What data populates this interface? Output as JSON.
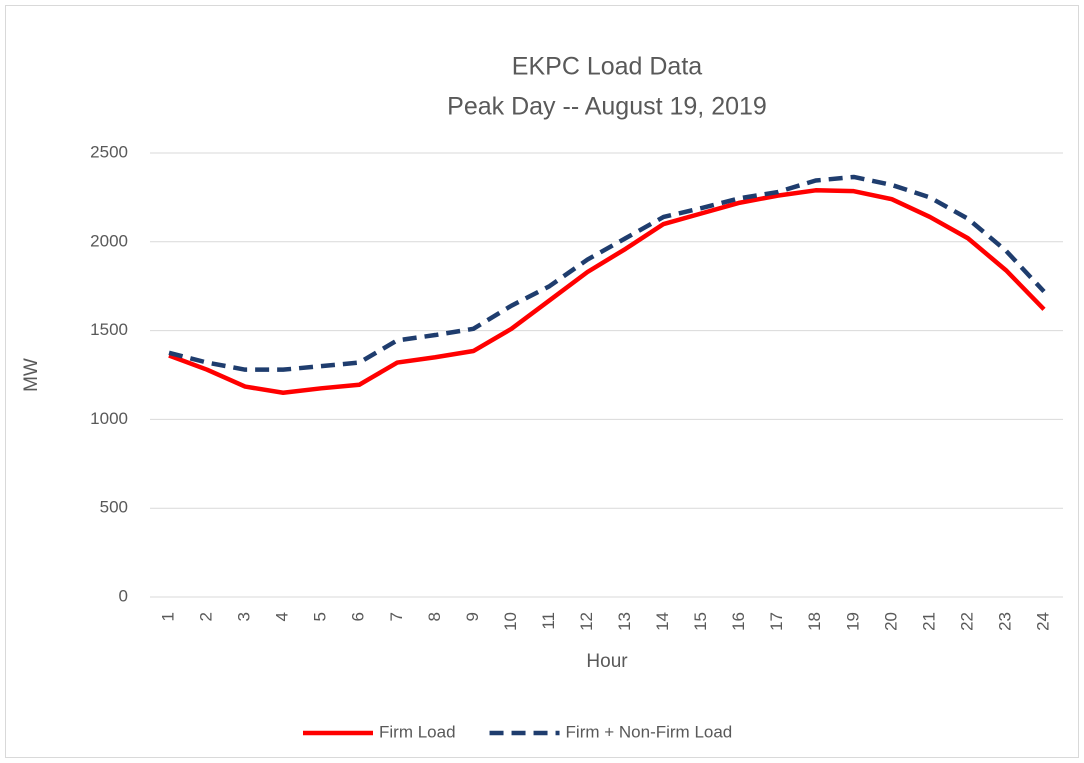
{
  "chart_data": {
    "type": "line",
    "title": "EKPC Load Data",
    "subtitle": "Peak Day -- August 19, 2019",
    "x_label": "Hour",
    "y_label": "MW",
    "categories": [
      "1",
      "2",
      "3",
      "4",
      "5",
      "6",
      "7",
      "8",
      "9",
      "10",
      "11",
      "12",
      "13",
      "14",
      "15",
      "16",
      "17",
      "18",
      "19",
      "20",
      "21",
      "22",
      "23",
      "24"
    ],
    "series": [
      {
        "name": "Firm Load",
        "color": "#ff0000",
        "dash": false,
        "values": [
          1360,
          1280,
          1185,
          1150,
          1175,
          1195,
          1320,
          1350,
          1385,
          1510,
          1670,
          1830,
          1960,
          2100,
          2160,
          2220,
          2260,
          2290,
          2285,
          2240,
          2140,
          2020,
          1840,
          1620
        ]
      },
      {
        "name": "Firm + Non-Firm Load",
        "color": "#1f3d6e",
        "dash": true,
        "values": [
          1375,
          1320,
          1280,
          1280,
          1300,
          1320,
          1445,
          1475,
          1510,
          1640,
          1750,
          1900,
          2020,
          2140,
          2190,
          2245,
          2280,
          2345,
          2365,
          2320,
          2250,
          2130,
          1950,
          1720
        ]
      }
    ],
    "ylim": [
      0,
      2500
    ],
    "yticks": [
      0,
      500,
      1000,
      1500,
      2000,
      2500
    ],
    "grid": true,
    "legend": "bottom"
  }
}
